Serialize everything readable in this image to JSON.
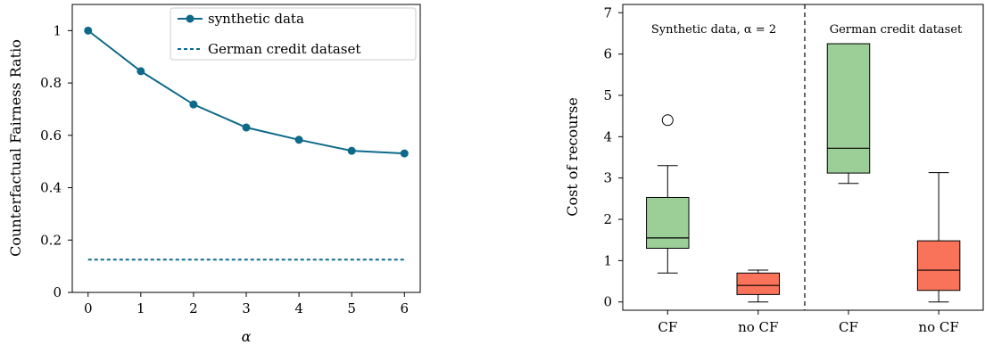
{
  "chart_data": [
    {
      "type": "line",
      "xlabel": "α",
      "ylabel": "Counterfactual Fairness Ratio",
      "xlim": [
        -0.3,
        6.3
      ],
      "ylim": [
        0,
        1.1
      ],
      "xticks": [
        0,
        1,
        2,
        3,
        4,
        5,
        6
      ],
      "yticks": [
        0,
        0.2,
        0.4,
        0.6,
        0.8,
        1
      ],
      "ytick_labels": [
        "0",
        "0.2",
        "0.4",
        "0.6",
        "0.8",
        "1"
      ],
      "legend_position": "top-right",
      "grid": false,
      "series": [
        {
          "name": "synthetic data",
          "style": "solid line with circle markers",
          "color": "#0e6a8a",
          "x": [
            0,
            1,
            2,
            3,
            4,
            5,
            6
          ],
          "y": [
            1.0,
            0.845,
            0.718,
            0.63,
            0.583,
            0.541,
            0.531
          ]
        },
        {
          "name": "German credit dataset",
          "style": "dashed horizontal line",
          "color": "#0e6a8a",
          "x": [
            0,
            6
          ],
          "y": [
            0.125,
            0.125
          ]
        }
      ]
    },
    {
      "type": "box",
      "ylabel": "Cost of recourse",
      "ylim": [
        -0.2,
        7.2
      ],
      "yticks": [
        0,
        1,
        2,
        3,
        4,
        5,
        6,
        7
      ],
      "categories": [
        "CF",
        "no CF",
        "CF",
        "no CF"
      ],
      "panels": [
        {
          "label": "Synthetic data, α = 2"
        },
        {
          "label": "German credit dataset"
        }
      ],
      "boxes": [
        {
          "category": "CF",
          "panel": 0,
          "color": "#9ccf98",
          "whisker_low": 0.7,
          "q1": 1.3,
          "median": 1.55,
          "q3": 2.53,
          "whisker_high": 3.3,
          "outliers": [
            4.4
          ]
        },
        {
          "category": "no CF",
          "panel": 0,
          "color": "#f9735a",
          "whisker_low": 0.0,
          "q1": 0.18,
          "median": 0.4,
          "q3": 0.7,
          "whisker_high": 0.77,
          "outliers": []
        },
        {
          "category": "CF",
          "panel": 1,
          "color": "#9ccf98",
          "whisker_low": 2.87,
          "q1": 3.12,
          "median": 3.72,
          "q3": 6.25,
          "whisker_high": 6.25,
          "outliers": []
        },
        {
          "category": "no CF",
          "panel": 1,
          "color": "#f9735a",
          "whisker_low": 0.0,
          "q1": 0.28,
          "median": 0.77,
          "q3": 1.48,
          "whisker_high": 3.13,
          "outliers": []
        }
      ]
    }
  ]
}
